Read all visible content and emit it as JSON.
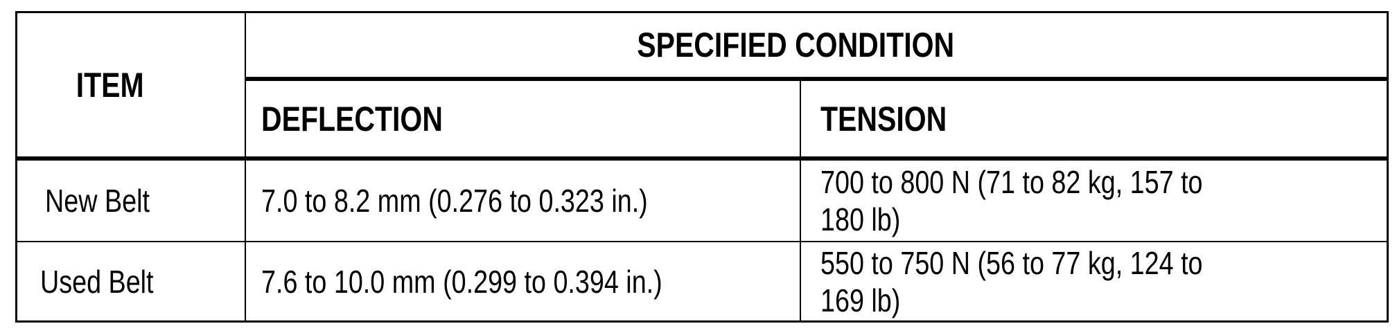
{
  "table": {
    "headers": {
      "item": "ITEM",
      "specified_condition": "SPECIFIED CONDITION",
      "deflection": "DEFLECTION",
      "tension": "TENSION"
    },
    "rows": [
      {
        "item": "New Belt",
        "deflection": "7.0 to 8.2 mm (0.276 to 0.323 in.)",
        "tension_line1": "700 to 800 N (71 to 82 kg, 157 to",
        "tension_line2": "180 lb)"
      },
      {
        "item": "Used Belt",
        "deflection": "7.6 to 10.0 mm (0.299 to 0.394 in.)",
        "tension_line1": "550 to 750 N (56 to 77 kg, 124 to",
        "tension_line2": "169 lb)"
      }
    ]
  }
}
